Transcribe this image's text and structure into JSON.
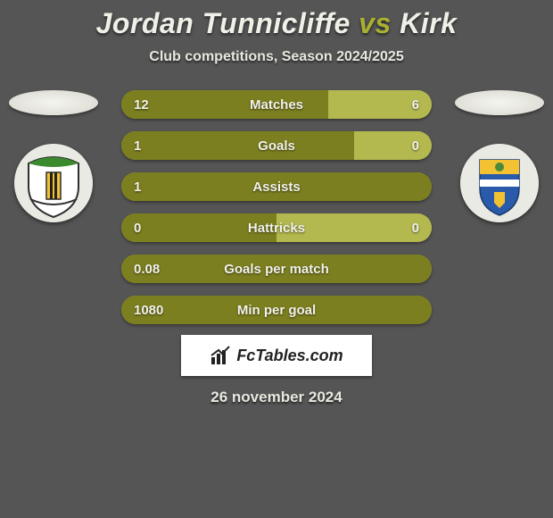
{
  "background_color": "#555555",
  "title": {
    "player1": "Jordan Tunnicliffe",
    "vs": "vs",
    "player2": "Kirk",
    "color_main": "#f0f0e8",
    "color_vs": "#aab030",
    "fontsize": 32
  },
  "subtitle": {
    "text": "Club competitions, Season 2024/2025",
    "color": "#e8e8e0",
    "fontsize": 16
  },
  "left_crest": {
    "bg": "#eaeae4",
    "shield_fill": "#ffffff",
    "shield_stroke": "#2f2f2f",
    "top_arc": "#3c8a2e",
    "banner": "#f2c233",
    "stripe": "#222222"
  },
  "right_crest": {
    "bg": "#eaeae4",
    "shield_top": "#f2c233",
    "shield_bottom": "#2a5aaa",
    "band": "#ffffff",
    "accent": "#4a8a3a"
  },
  "bars": {
    "track_color": "#a3a63a",
    "left_color": "#7c7f1f",
    "right_color": "#b3b84f",
    "label_color": "#f2f2ea",
    "height": 32,
    "radius": 16,
    "fontsize": 15,
    "rows": [
      {
        "label": "Matches",
        "left_val": "12",
        "right_val": "6",
        "left_pct": 66.6,
        "right_pct": 33.4
      },
      {
        "label": "Goals",
        "left_val": "1",
        "right_val": "0",
        "left_pct": 75,
        "right_pct": 25
      },
      {
        "label": "Assists",
        "left_val": "1",
        "right_val": "",
        "left_pct": 100,
        "right_pct": 0
      },
      {
        "label": "Hattricks",
        "left_val": "0",
        "right_val": "0",
        "left_pct": 50,
        "right_pct": 50
      },
      {
        "label": "Goals per match",
        "left_val": "0.08",
        "right_val": "",
        "left_pct": 100,
        "right_pct": 0
      },
      {
        "label": "Min per goal",
        "left_val": "1080",
        "right_val": "",
        "left_pct": 100,
        "right_pct": 0
      }
    ]
  },
  "brand": {
    "text": "FcTables.com",
    "box_bg": "#ffffff",
    "text_color": "#222222",
    "fontsize": 18
  },
  "date": {
    "text": "26 november 2024",
    "color": "#e8e8e0",
    "fontsize": 17
  }
}
